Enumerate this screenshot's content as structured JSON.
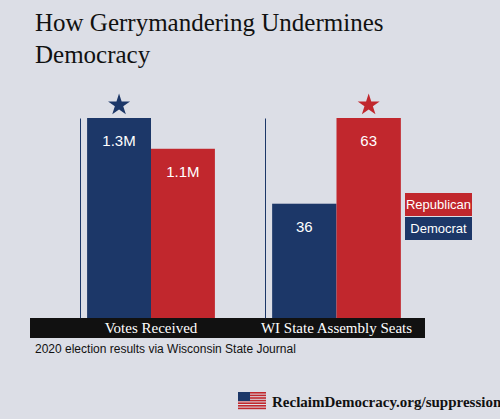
{
  "chart_data": [
    {
      "type": "bar",
      "title": "How Gerrymandering Undermines Democracy",
      "annotations": [
        "2020 election results via Wisconsin State Journal",
        "ReclaimDemocracy.org/suppression"
      ],
      "categories": [
        "Votes Received"
      ],
      "series": [
        {
          "color": "#1c3768",
          "values": [
            1300000
          ],
          "value_labels": [
            "1.3M"
          ]
        },
        {
          "color": "#c1272d",
          "values": [
            1100000
          ],
          "value_labels": [
            "1.1M"
          ]
        }
      ],
      "ylim": [
        0,
        1300000
      ],
      "data_labels": true,
      "tick_labels": "x"
    },
    {
      "type": "bar",
      "categories": [
        "WI State Assembly Seats"
      ],
      "series": [
        {
          "name": "Democrat",
          "color": "#1c3768",
          "values": [
            36
          ]
        },
        {
          "name": "Republican",
          "color": "#c1272d",
          "values": [
            63
          ]
        }
      ],
      "ylim": [
        0,
        63
      ],
      "data_labels": true,
      "tick_labels": "x",
      "legend": "right"
    }
  ]
}
